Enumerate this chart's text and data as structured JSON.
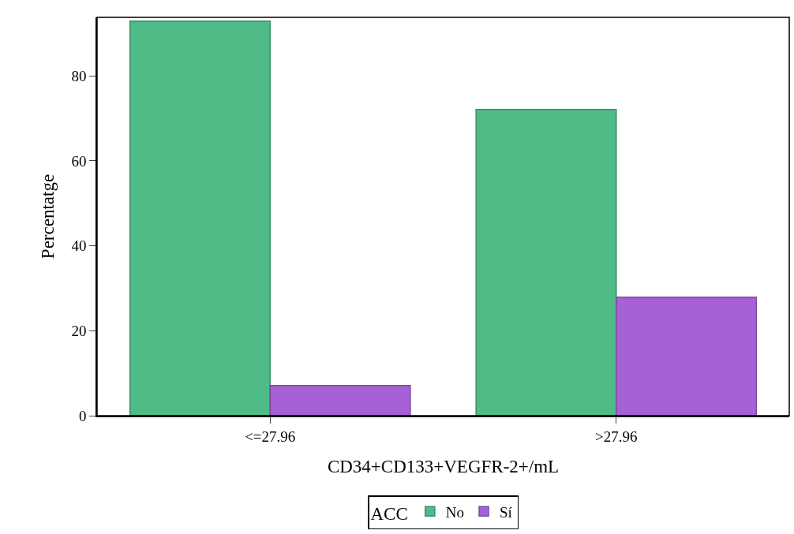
{
  "chart_data": {
    "type": "bar",
    "xlabel": "CD34+CD133+VEGFR-2+/mL",
    "ylabel": "Percentatge",
    "legend_title": "ACC",
    "categories": [
      "<=27.96",
      ">27.96"
    ],
    "series": [
      {
        "name": "No",
        "color": "#4fbc88",
        "values": [
          92.9,
          72.1
        ]
      },
      {
        "name": "Sí",
        "color": "#a661d6",
        "values": [
          7.1,
          27.9
        ]
      }
    ],
    "ylim": [
      0,
      93.8
    ],
    "yticks": [
      0,
      20,
      40,
      60,
      80
    ],
    "legend": "bottom"
  }
}
